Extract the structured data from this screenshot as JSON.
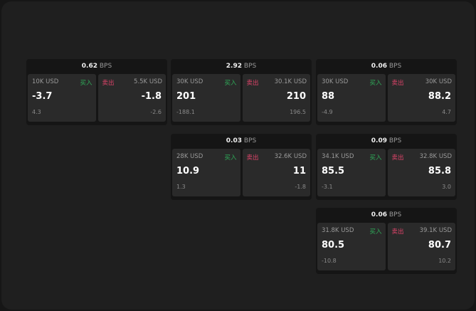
{
  "bps_unit": "BPS",
  "buy_label": "买入",
  "sell_label": "卖出",
  "colors": {
    "buy": "#2fae5a",
    "sell": "#e0446a"
  },
  "cards": [
    {
      "bps": "0.62",
      "buy": {
        "size": "10K USD",
        "price": "-3.7",
        "change": "4.3"
      },
      "sell": {
        "size": "5.5K USD",
        "price": "-1.8",
        "change": "-2.6"
      }
    },
    {
      "bps": "2.92",
      "buy": {
        "size": "30K USD",
        "price": "201",
        "change": "-188.1"
      },
      "sell": {
        "size": "30.1K USD",
        "price": "210",
        "change": "196.5"
      }
    },
    {
      "bps": "0.06",
      "buy": {
        "size": "30K USD",
        "price": "88",
        "change": "-4.9"
      },
      "sell": {
        "size": "30K USD",
        "price": "88.2",
        "change": "4.7"
      }
    },
    {
      "bps": "0.03",
      "buy": {
        "size": "28K USD",
        "price": "10.9",
        "change": "1.3"
      },
      "sell": {
        "size": "32.6K USD",
        "price": "11",
        "change": "-1.8"
      }
    },
    {
      "bps": "0.09",
      "buy": {
        "size": "34.1K USD",
        "price": "85.5",
        "change": "-3.1"
      },
      "sell": {
        "size": "32.8K USD",
        "price": "85.8",
        "change": "3.0"
      }
    },
    {
      "bps": "0.06",
      "buy": {
        "size": "31.8K USD",
        "price": "80.5",
        "change": "-10.8"
      },
      "sell": {
        "size": "39.1K USD",
        "price": "80.7",
        "change": "10.2"
      }
    }
  ]
}
